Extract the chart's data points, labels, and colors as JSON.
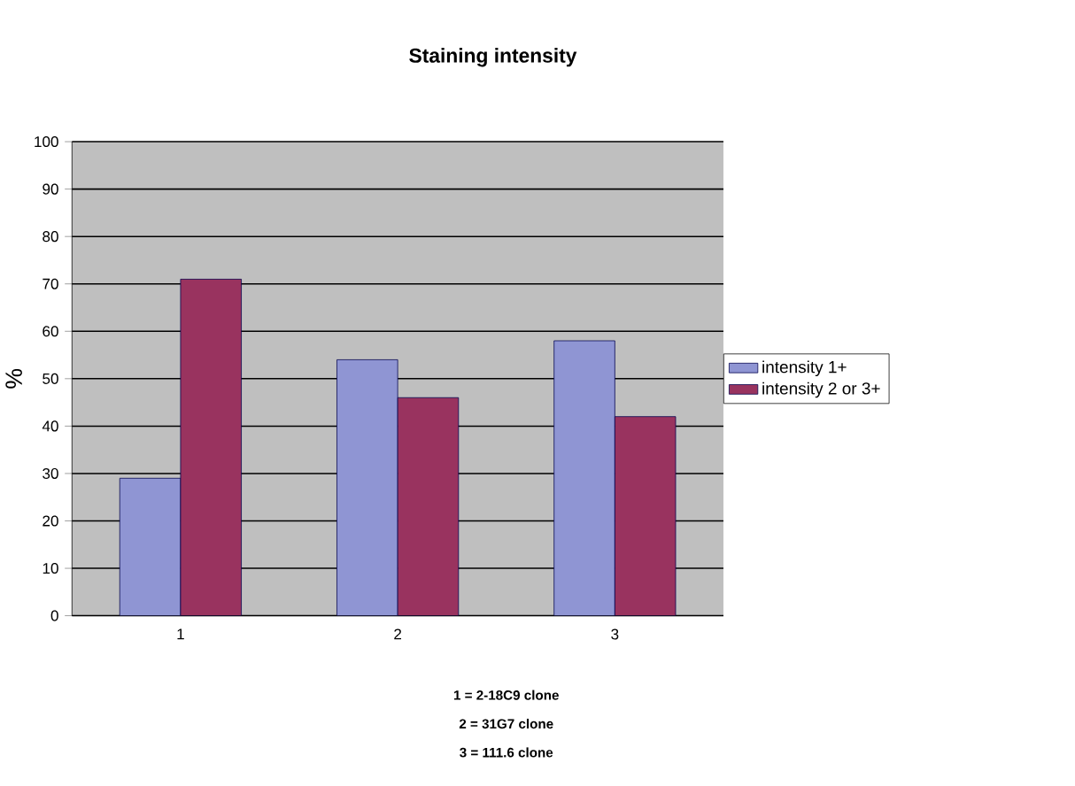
{
  "chart_data": {
    "type": "bar",
    "title": "Staining intensity",
    "ylabel": "%",
    "categories": [
      "1",
      "2",
      "3"
    ],
    "series": [
      {
        "name": "intensity 1+",
        "color": "#8f95d3",
        "values": [
          29,
          54,
          58
        ]
      },
      {
        "name": "intensity 2 or 3+",
        "color": "#99335f",
        "values": [
          71,
          46,
          42
        ]
      }
    ],
    "ylim": [
      0,
      100
    ],
    "yticks": [
      0,
      10,
      20,
      30,
      40,
      50,
      60,
      70,
      80,
      90,
      100
    ],
    "grid": "y",
    "legend": "right",
    "annotations": [
      "1 = 2-18C9 clone",
      "2 = 31G7 clone",
      "3 = 111.6 clone"
    ]
  }
}
